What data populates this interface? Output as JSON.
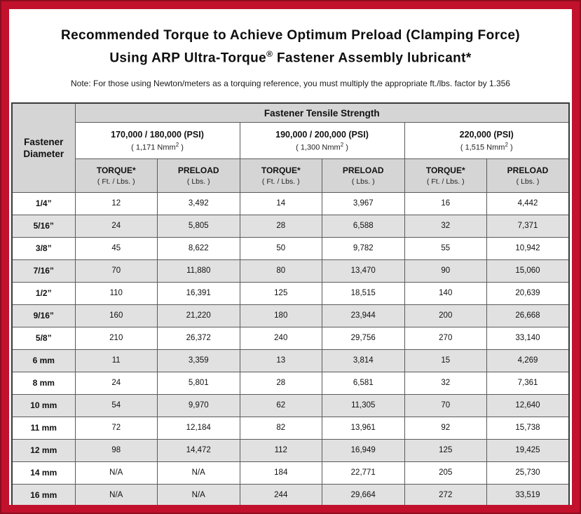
{
  "chart_data": {
    "type": "table",
    "title": {
      "line1": "Recommended Torque to Achieve Optimum Preload (Clamping Force)",
      "line2_pre": "Using ARP Ultra-Torque",
      "line2_sup": "®",
      "line2_post": " Fastener Assembly lubricant*"
    },
    "note": "Note: For those using Newton/meters as a torquing reference, you must multiply the appropriate ft./lbs. factor by 1.356",
    "header": {
      "corner": "Fastener Diameter",
      "group": "Fastener Tensile Strength",
      "strength_groups": [
        {
          "psi": "170,000 / 180,000 (PSI)",
          "nmm_pre": "( 1,171 Nmm",
          "nmm_sup": "2",
          "nmm_post": " )"
        },
        {
          "psi": "190,000 / 200,000 (PSI)",
          "nmm_pre": "( 1,300 Nmm",
          "nmm_sup": "2",
          "nmm_post": " )"
        },
        {
          "psi": "220,000 (PSI)",
          "nmm_pre": "( 1,515 Nmm",
          "nmm_sup": "2",
          "nmm_post": " )"
        }
      ],
      "measure_headers": [
        {
          "label": "TORQUE*",
          "unit": "( Ft. / Lbs. )"
        },
        {
          "label": "PRELOAD",
          "unit": "( Lbs. )"
        },
        {
          "label": "TORQUE*",
          "unit": "( Ft. / Lbs. )"
        },
        {
          "label": "PRELOAD",
          "unit": "( Lbs. )"
        },
        {
          "label": "TORQUE*",
          "unit": "( Ft. / Lbs. )"
        },
        {
          "label": "PRELOAD",
          "unit": "( Lbs. )"
        }
      ]
    },
    "rows": [
      {
        "diameter": "1/4”",
        "values": [
          "12",
          "3,492",
          "14",
          "3,967",
          "16",
          "4,442"
        ]
      },
      {
        "diameter": "5/16”",
        "values": [
          "24",
          "5,805",
          "28",
          "6,588",
          "32",
          "7,371"
        ]
      },
      {
        "diameter": "3/8”",
        "values": [
          "45",
          "8,622",
          "50",
          "9,782",
          "55",
          "10,942"
        ]
      },
      {
        "diameter": "7/16”",
        "values": [
          "70",
          "11,880",
          "80",
          "13,470",
          "90",
          "15,060"
        ]
      },
      {
        "diameter": "1/2”",
        "values": [
          "110",
          "16,391",
          "125",
          "18,515",
          "140",
          "20,639"
        ]
      },
      {
        "diameter": "9/16”",
        "values": [
          "160",
          "21,220",
          "180",
          "23,944",
          "200",
          "26,668"
        ]
      },
      {
        "diameter": "5/8”",
        "values": [
          "210",
          "26,372",
          "240",
          "29,756",
          "270",
          "33,140"
        ]
      },
      {
        "diameter": "6 mm",
        "values": [
          "11",
          "3,359",
          "13",
          "3,814",
          "15",
          "4,269"
        ]
      },
      {
        "diameter": "8 mm",
        "values": [
          "24",
          "5,801",
          "28",
          "6,581",
          "32",
          "7,361"
        ]
      },
      {
        "diameter": "10 mm",
        "values": [
          "54",
          "9,970",
          "62",
          "11,305",
          "70",
          "12,640"
        ]
      },
      {
        "diameter": "11 mm",
        "values": [
          "72",
          "12,184",
          "82",
          "13,961",
          "92",
          "15,738"
        ]
      },
      {
        "diameter": "12 mm",
        "values": [
          "98",
          "14,472",
          "112",
          "16,949",
          "125",
          "19,425"
        ]
      },
      {
        "diameter": "14 mm",
        "values": [
          "N/A",
          "N/A",
          "184",
          "22,771",
          "205",
          "25,730"
        ]
      },
      {
        "diameter": "16 mm",
        "values": [
          "N/A",
          "N/A",
          "244",
          "29,664",
          "272",
          "33,519"
        ]
      }
    ],
    "colors": {
      "frame_red": "#c2112c",
      "header_gray": "#d5d5d5",
      "alt_row_gray": "#e1e1e1"
    }
  }
}
